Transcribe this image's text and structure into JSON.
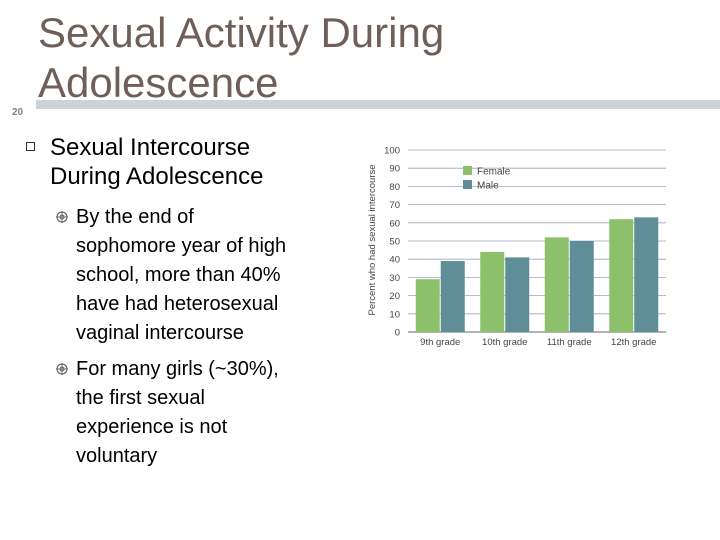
{
  "slide": {
    "number": "20",
    "title_lines": [
      "Sexual Activity During",
      "Adolescence"
    ]
  },
  "bullets": {
    "heading_lines": [
      "Sexual Intercourse",
      "During Adolescence"
    ],
    "sub": [
      {
        "lines": [
          "By the end of",
          "sophomore year of high",
          "school, more than 40%",
          "have had heterosexual",
          "vaginal intercourse"
        ]
      },
      {
        "lines": [
          "For many girls (~30%),",
          "the first sexual",
          "experience is not",
          "voluntary"
        ]
      }
    ],
    "icons": {
      "level1": "square-bullet-icon",
      "level2": "target-bullet-icon"
    }
  },
  "chart_data": {
    "type": "bar",
    "categories": [
      "9th grade",
      "10th grade",
      "11th grade",
      "12th grade"
    ],
    "series": [
      {
        "name": "Female",
        "values": [
          29,
          44,
          52,
          62
        ],
        "color": "#8dc06a"
      },
      {
        "name": "Male",
        "values": [
          39,
          41,
          50,
          63
        ],
        "color": "#5f8e98"
      }
    ],
    "ylabel": "Percent who had sexual intercourse",
    "xlabel": "",
    "ylim": [
      0,
      100
    ],
    "yticks": [
      0,
      10,
      20,
      30,
      40,
      50,
      60,
      70,
      80,
      90,
      100
    ],
    "grid": true,
    "legend": "top-right"
  }
}
